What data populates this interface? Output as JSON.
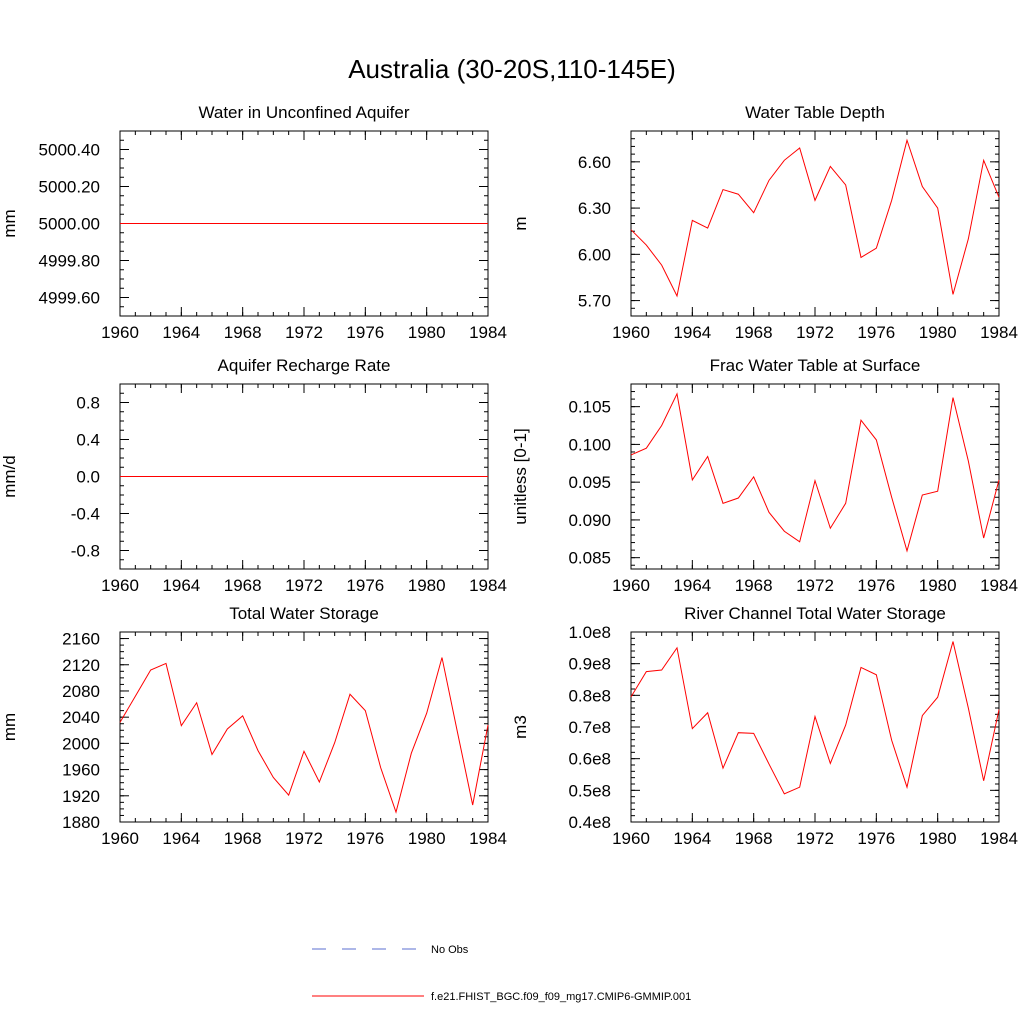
{
  "figure": {
    "title": "Australia (30-20S,110-145E)"
  },
  "legend": {
    "position": "bottom-center",
    "entries": [
      {
        "label": "No Obs",
        "color": "#5b6fd0",
        "style": "dashed"
      },
      {
        "label": "f.e21.FHIST_BGC.f09_f09_mg17.CMIP6-GMMIP.001",
        "color": "#ff0000",
        "style": "solid"
      }
    ]
  },
  "chart_data": [
    {
      "type": "line",
      "title": "Water in Unconfined Aquifer",
      "xlabel": "",
      "ylabel": "mm",
      "xlim": [
        1960,
        1984
      ],
      "ylim": [
        4999.5,
        5000.5
      ],
      "xticks": [
        1960,
        1964,
        1968,
        1972,
        1976,
        1980,
        1984
      ],
      "xtick_labels": [
        "1960",
        "1964",
        "1968",
        "1972",
        "1976",
        "1980",
        "1984"
      ],
      "yticks": [
        4999.6,
        4999.8,
        5000.0,
        5000.2,
        5000.4
      ],
      "ytick_labels": [
        "4999.60",
        "4999.80",
        "5000.00",
        "5000.20",
        "5000.40"
      ],
      "yminor": 0.05,
      "x": [
        1960,
        1961,
        1962,
        1963,
        1964,
        1965,
        1966,
        1967,
        1968,
        1969,
        1970,
        1971,
        1972,
        1973,
        1974,
        1975,
        1976,
        1977,
        1978,
        1979,
        1980,
        1981,
        1982,
        1983,
        1984
      ],
      "series": [
        {
          "color": "#ff0000",
          "values": [
            5000,
            5000,
            5000,
            5000,
            5000,
            5000,
            5000,
            5000,
            5000,
            5000,
            5000,
            5000,
            5000,
            5000,
            5000,
            5000,
            5000,
            5000,
            5000,
            5000,
            5000,
            5000,
            5000,
            5000,
            5000
          ]
        }
      ]
    },
    {
      "type": "line",
      "title": "Water Table Depth",
      "xlabel": "",
      "ylabel": "m",
      "xlim": [
        1960,
        1984
      ],
      "ylim": [
        5.6,
        6.8
      ],
      "xticks": [
        1960,
        1964,
        1968,
        1972,
        1976,
        1980,
        1984
      ],
      "xtick_labels": [
        "1960",
        "1964",
        "1968",
        "1972",
        "1976",
        "1980",
        "1984"
      ],
      "yticks": [
        5.7,
        6.0,
        6.3,
        6.6
      ],
      "ytick_labels": [
        "5.70",
        "6.00",
        "6.30",
        "6.60"
      ],
      "yminor": 0.05,
      "x": [
        1960,
        1961,
        1962,
        1963,
        1964,
        1965,
        1966,
        1967,
        1968,
        1969,
        1970,
        1971,
        1972,
        1973,
        1974,
        1975,
        1976,
        1977,
        1978,
        1979,
        1980,
        1981,
        1982,
        1983,
        1984
      ],
      "series": [
        {
          "color": "#ff0000",
          "values": [
            6.16,
            6.06,
            5.93,
            5.73,
            6.22,
            6.17,
            6.42,
            6.39,
            6.27,
            6.48,
            6.61,
            6.69,
            6.35,
            6.57,
            6.45,
            5.98,
            6.04,
            6.35,
            6.74,
            6.44,
            6.3,
            5.74,
            6.1,
            6.61,
            6.37
          ]
        }
      ]
    },
    {
      "type": "line",
      "title": "Aquifer Recharge Rate",
      "xlabel": "",
      "ylabel": "mm/d",
      "xlim": [
        1960,
        1984
      ],
      "ylim": [
        -1.0,
        1.0
      ],
      "xticks": [
        1960,
        1964,
        1968,
        1972,
        1976,
        1980,
        1984
      ],
      "xtick_labels": [
        "1960",
        "1964",
        "1968",
        "1972",
        "1976",
        "1980",
        "1984"
      ],
      "yticks": [
        -0.8,
        -0.4,
        0.0,
        0.4,
        0.8
      ],
      "ytick_labels": [
        "-0.8",
        "-0.4",
        "0.0",
        "0.4",
        "0.8"
      ],
      "yminor": 0.1,
      "x": [
        1960,
        1961,
        1962,
        1963,
        1964,
        1965,
        1966,
        1967,
        1968,
        1969,
        1970,
        1971,
        1972,
        1973,
        1974,
        1975,
        1976,
        1977,
        1978,
        1979,
        1980,
        1981,
        1982,
        1983,
        1984
      ],
      "series": [
        {
          "color": "#ff0000",
          "values": [
            0,
            0,
            0,
            0,
            0,
            0,
            0,
            0,
            0,
            0,
            0,
            0,
            0,
            0,
            0,
            0,
            0,
            0,
            0,
            0,
            0,
            0,
            0,
            0,
            0
          ]
        }
      ]
    },
    {
      "type": "line",
      "title": "Frac Water Table at Surface",
      "xlabel": "",
      "ylabel": "unitless [0-1]",
      "xlim": [
        1960,
        1984
      ],
      "ylim": [
        0.0835,
        0.108
      ],
      "xticks": [
        1960,
        1964,
        1968,
        1972,
        1976,
        1980,
        1984
      ],
      "xtick_labels": [
        "1960",
        "1964",
        "1968",
        "1972",
        "1976",
        "1980",
        "1984"
      ],
      "yticks": [
        0.085,
        0.09,
        0.095,
        0.1,
        0.105
      ],
      "ytick_labels": [
        "0.085",
        "0.090",
        "0.095",
        "0.100",
        "0.105"
      ],
      "yminor": 0.001,
      "x": [
        1960,
        1961,
        1962,
        1963,
        1964,
        1965,
        1966,
        1967,
        1968,
        1969,
        1970,
        1971,
        1972,
        1973,
        1974,
        1975,
        1976,
        1977,
        1978,
        1979,
        1980,
        1981,
        1982,
        1983,
        1984
      ],
      "series": [
        {
          "color": "#ff0000",
          "values": [
            0.0986,
            0.0995,
            0.1025,
            0.1067,
            0.0953,
            0.0984,
            0.0922,
            0.0929,
            0.0957,
            0.091,
            0.0885,
            0.0871,
            0.0952,
            0.0889,
            0.0922,
            0.1032,
            0.1006,
            0.093,
            0.0859,
            0.0933,
            0.0938,
            0.1062,
            0.0978,
            0.0876,
            0.0953
          ]
        }
      ]
    },
    {
      "type": "line",
      "title": "Total Water Storage",
      "xlabel": "",
      "ylabel": "mm",
      "xlim": [
        1960,
        1984
      ],
      "ylim": [
        1880,
        2170
      ],
      "xticks": [
        1960,
        1964,
        1968,
        1972,
        1976,
        1980,
        1984
      ],
      "xtick_labels": [
        "1960",
        "1964",
        "1968",
        "1972",
        "1976",
        "1980",
        "1984"
      ],
      "yticks": [
        1880,
        1920,
        1960,
        2000,
        2040,
        2080,
        2120,
        2160
      ],
      "ytick_labels": [
        "1880",
        "1920",
        "1960",
        "2000",
        "2040",
        "2080",
        "2120",
        "2160"
      ],
      "yminor": 10,
      "x": [
        1960,
        1961,
        1962,
        1963,
        1964,
        1965,
        1966,
        1967,
        1968,
        1969,
        1970,
        1971,
        1972,
        1973,
        1974,
        1975,
        1976,
        1977,
        1978,
        1979,
        1980,
        1981,
        1982,
        1983,
        1984
      ],
      "series": [
        {
          "color": "#ff0000",
          "values": [
            2032,
            2072,
            2112,
            2122,
            2027,
            2062,
            1983,
            2022,
            2042,
            1989,
            1948,
            1921,
            1988,
            1941,
            2001,
            2075,
            2050,
            1963,
            1895,
            1985,
            2046,
            2131,
            2018,
            1906,
            2028
          ]
        }
      ]
    },
    {
      "type": "line",
      "title": "River Channel Total Water Storage",
      "xlabel": "",
      "ylabel": "m3",
      "xlim": [
        1960,
        1984
      ],
      "ylim": [
        40000000,
        100000000
      ],
      "xticks": [
        1960,
        1964,
        1968,
        1972,
        1976,
        1980,
        1984
      ],
      "xtick_labels": [
        "1960",
        "1964",
        "1968",
        "1972",
        "1976",
        "1980",
        "1984"
      ],
      "yticks": [
        40000000,
        50000000,
        60000000,
        70000000,
        80000000,
        90000000,
        100000000
      ],
      "ytick_labels": [
        "0.4e8",
        "0.5e8",
        "0.6e8",
        "0.7e8",
        "0.8e8",
        "0.9e8",
        "1.0e8"
      ],
      "yminor": 2000000,
      "x": [
        1960,
        1961,
        1962,
        1963,
        1964,
        1965,
        1966,
        1967,
        1968,
        1969,
        1970,
        1971,
        1972,
        1973,
        1974,
        1975,
        1976,
        1977,
        1978,
        1979,
        1980,
        1981,
        1982,
        1983,
        1984
      ],
      "series": [
        {
          "color": "#ff0000",
          "values": [
            79500000,
            87500000,
            88000000,
            95000000,
            69500000,
            74500000,
            57000000,
            68200000,
            68000000,
            58300000,
            48900000,
            51000000,
            73300000,
            58500000,
            70600000,
            88800000,
            86500000,
            65800000,
            51000000,
            73600000,
            79400000,
            97000000,
            76000000,
            53000000,
            75500000
          ]
        }
      ]
    }
  ]
}
